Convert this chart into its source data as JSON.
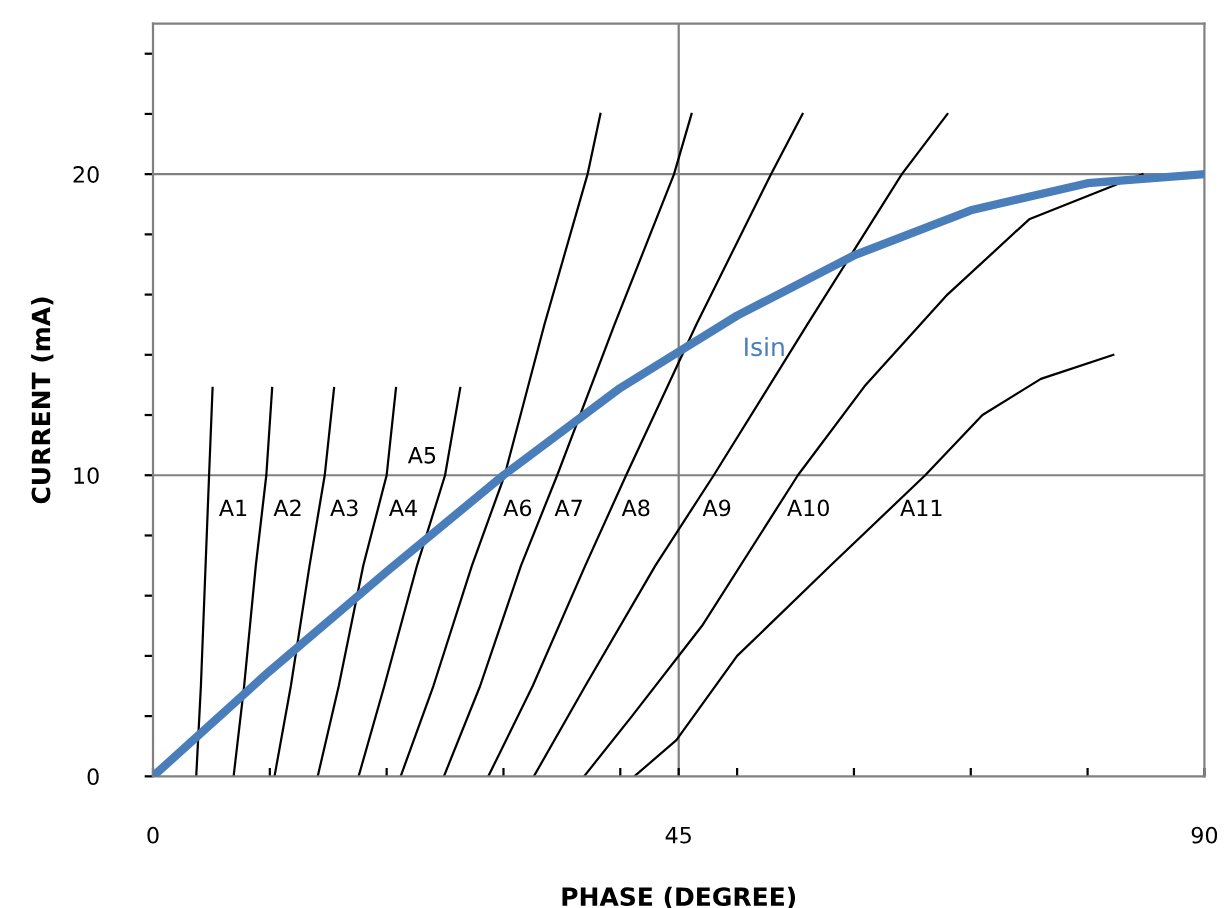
{
  "chart_data": {
    "type": "line",
    "xlabel": "PHASE (DEGREE)",
    "ylabel": "CURRENT (mA)",
    "xlim": [
      0,
      90
    ],
    "ylim": [
      0,
      25
    ],
    "xticks": [
      0,
      {
        "value": 10,
        "label": null
      },
      {
        "value": 20,
        "label": null
      },
      {
        "value": 30,
        "label": null
      },
      {
        "value": 40,
        "label": null
      },
      45,
      {
        "value": 50,
        "label": null
      },
      {
        "value": 60,
        "label": null
      },
      {
        "value": 70,
        "label": null
      },
      {
        "value": 80,
        "label": null
      },
      90
    ],
    "yticks": [
      0,
      {
        "value": 2,
        "label": null
      },
      {
        "value": 4,
        "label": null
      },
      {
        "value": 6,
        "label": null
      },
      {
        "value": 8,
        "label": null
      },
      10,
      {
        "value": 12,
        "label": null
      },
      {
        "value": 14,
        "label": null
      },
      {
        "value": 16,
        "label": null
      },
      {
        "value": 18,
        "label": null
      },
      20,
      {
        "value": 22,
        "label": null
      },
      {
        "value": 24,
        "label": null
      }
    ],
    "grid": true,
    "legend": false,
    "marker": "none",
    "line_style": "solid",
    "series": [
      {
        "name": "A1",
        "color": "#000000",
        "x": [
          3.7,
          4.1,
          4.5,
          4.8,
          5.1
        ],
        "values": [
          0,
          3,
          7,
          10,
          12.9
        ]
      },
      {
        "name": "A2",
        "color": "#000000",
        "x": [
          6.9,
          7.8,
          8.8,
          9.7,
          10.2
        ],
        "values": [
          0,
          3,
          7,
          10,
          12.9
        ]
      },
      {
        "name": "A3",
        "color": "#000000",
        "x": [
          10.4,
          11.8,
          13.4,
          14.7,
          15.5
        ],
        "values": [
          0,
          3,
          7,
          10,
          12.9
        ]
      },
      {
        "name": "A4",
        "color": "#000000",
        "x": [
          14.1,
          15.9,
          18.0,
          20.0,
          20.8
        ],
        "values": [
          0,
          3,
          7,
          10,
          12.9
        ]
      },
      {
        "name": "A5",
        "color": "#000000",
        "x": [
          17.6,
          19.8,
          22.6,
          25.0,
          26.3
        ],
        "values": [
          0,
          3,
          7,
          10,
          12.9
        ]
      },
      {
        "name": "A6",
        "color": "#000000",
        "x": [
          21.2,
          24.0,
          27.3,
          30.1,
          33.5,
          37.2,
          38.3
        ],
        "values": [
          0,
          3,
          7,
          10,
          15,
          20,
          22
        ]
      },
      {
        "name": "A7",
        "color": "#000000",
        "x": [
          24.9,
          28.0,
          31.5,
          34.6,
          39.5,
          44.6,
          46.1
        ],
        "values": [
          0,
          3,
          7,
          10,
          15,
          20,
          22
        ]
      },
      {
        "name": "A8",
        "color": "#000000",
        "x": [
          28.7,
          32.5,
          37.0,
          40.5,
          46.5,
          52.9,
          55.6
        ],
        "values": [
          0,
          3,
          7,
          10,
          15,
          20,
          22
        ]
      },
      {
        "name": "A9",
        "color": "#000000",
        "x": [
          32.6,
          37.0,
          43.0,
          48.0,
          56.0,
          64.1,
          68.0
        ],
        "values": [
          0,
          3,
          7,
          10,
          15,
          20,
          22
        ]
      },
      {
        "name": "A10",
        "color": "#000000",
        "x": [
          36.9,
          41.0,
          47.0,
          55.2,
          61.0,
          68.0,
          75.0,
          84.7
        ],
        "values": [
          0,
          2,
          5,
          10,
          13,
          16,
          18.5,
          20
        ]
      },
      {
        "name": "A11",
        "color": "#000000",
        "x": [
          41.2,
          44.8,
          50.0,
          58.0,
          66.1,
          71.0,
          76.0,
          82.2
        ],
        "values": [
          0,
          1.2,
          4,
          7,
          10,
          12,
          13.2,
          14
        ]
      },
      {
        "name": "Isin",
        "color": "#4a7ebb",
        "x": [
          0,
          10,
          20,
          30,
          40,
          45,
          50,
          60,
          70,
          80,
          90
        ],
        "values": [
          0,
          3.5,
          6.8,
          10,
          12.9,
          14.1,
          15.3,
          17.3,
          18.8,
          19.7,
          20
        ]
      }
    ]
  }
}
